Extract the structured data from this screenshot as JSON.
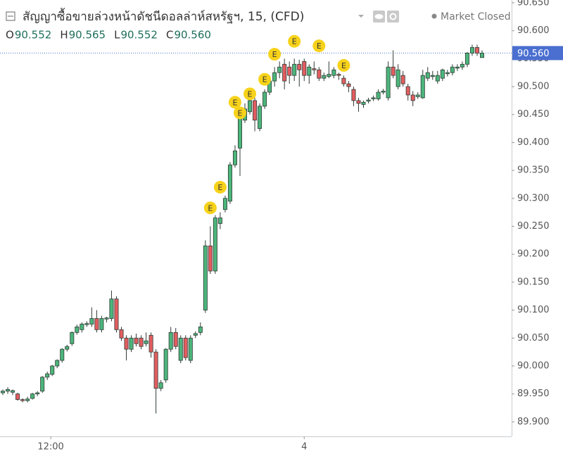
{
  "chart_data": {
    "type": "candlestick",
    "title": "สัญญาซื้อขายล่วงหน้าดัชนีดอลล่าห์สหรัฐฯ, 15, (CFD)",
    "status": "Market Closed",
    "legend_ohlc": [
      {
        "label": "O",
        "value": "90.552"
      },
      {
        "label": "H",
        "value": "90.565"
      },
      {
        "label": "L",
        "value": "90.552"
      },
      {
        "label": "C",
        "value": "90.560"
      }
    ],
    "up_color": "#4cb57b",
    "down_color": "#e35d60",
    "ylim": [
      89.874,
      90.655
    ],
    "yticks": [
      {
        "value": 90.65,
        "label": "90.650"
      },
      {
        "value": 90.6,
        "label": "90.600"
      },
      {
        "value": 90.55,
        "label": "90.550"
      },
      {
        "value": 90.5,
        "label": "90.500"
      },
      {
        "value": 90.45,
        "label": "90.450"
      },
      {
        "value": 90.4,
        "label": "90.400"
      },
      {
        "value": 90.35,
        "label": "90.350"
      },
      {
        "value": 90.3,
        "label": "90.300"
      },
      {
        "value": 90.25,
        "label": "90.250"
      },
      {
        "value": 90.2,
        "label": "90.200"
      },
      {
        "value": 90.15,
        "label": "90.150"
      },
      {
        "value": 90.1,
        "label": "90.100"
      },
      {
        "value": 90.05,
        "label": "90.050"
      },
      {
        "value": 90,
        "label": "90.000"
      },
      {
        "value": 89.95,
        "label": "89.950"
      },
      {
        "value": 89.9,
        "label": "89.900"
      }
    ],
    "xticks": [
      {
        "value": 9.7,
        "label": "12:00"
      },
      {
        "value": 61,
        "label": "4"
      }
    ],
    "last_price": {
      "value": 90.56,
      "label": "90.560",
      "color": "#4a6fd0"
    },
    "events": [
      {
        "index": 42,
        "value": 90.283,
        "label": "E"
      },
      {
        "index": 44,
        "value": 90.32,
        "label": "E"
      },
      {
        "index": 47,
        "value": 90.472,
        "label": "E"
      },
      {
        "index": 48,
        "value": 90.453,
        "label": "E"
      },
      {
        "index": 50,
        "value": 90.487,
        "label": "E"
      },
      {
        "index": 53,
        "value": 90.513,
        "label": "E"
      },
      {
        "index": 55,
        "value": 90.558,
        "label": "E"
      },
      {
        "index": 59,
        "value": 90.581,
        "label": "E"
      },
      {
        "index": 64,
        "value": 90.573,
        "label": "E"
      },
      {
        "index": 69,
        "value": 90.538,
        "label": "E"
      }
    ],
    "open": [
      89.952,
      89.955,
      89.953,
      89.95,
      89.94,
      89.938,
      89.942,
      89.95,
      89.955,
      89.98,
      89.985,
      90.0,
      90.01,
      90.03,
      90.04,
      90.06,
      90.065,
      90.074,
      90.075,
      90.085,
      90.065,
      90.084,
      90.085,
      90.12,
      90.065,
      90.05,
      90.03,
      90.05,
      90.05,
      90.04,
      90.055,
      90.025,
      89.96,
      89.975,
      90.03,
      90.06,
      90.01,
      90.05,
      90.01,
      90.055,
      90.06,
      90.1,
      90.215,
      90.17,
      90.255,
      90.28,
      90.295,
      90.36,
      90.39,
      90.44,
      90.455,
      90.475,
      90.425,
      90.465,
      90.49,
      90.51,
      90.525,
      90.54,
      90.535,
      90.52,
      90.54,
      90.545,
      90.52,
      90.532,
      90.53,
      90.515,
      90.518,
      90.52,
      90.522,
      90.515,
      90.505,
      90.495,
      90.475,
      90.468,
      90.474,
      90.478,
      90.478,
      90.49,
      90.48,
      90.535,
      90.5,
      90.52,
      90.5,
      90.485,
      90.482,
      90.48,
      90.515,
      90.518,
      90.51,
      90.515,
      90.523,
      90.525,
      90.533,
      90.535,
      90.54,
      90.56,
      90.57,
      90.552
    ],
    "high": [
      89.958,
      89.962,
      89.958,
      89.952,
      89.942,
      89.945,
      89.952,
      89.955,
      89.982,
      89.99,
      90.002,
      90.012,
      90.032,
      90.038,
      90.062,
      90.074,
      90.078,
      90.08,
      90.105,
      90.1,
      90.09,
      90.088,
      90.135,
      90.125,
      90.07,
      90.055,
      90.055,
      90.058,
      90.055,
      90.06,
      90.06,
      90.03,
      89.975,
      90.032,
      90.07,
      90.068,
      90.055,
      90.055,
      90.055,
      90.062,
      90.078,
      90.225,
      90.25,
      90.27,
      90.275,
      90.305,
      90.365,
      90.395,
      90.455,
      90.47,
      90.485,
      90.48,
      90.47,
      90.495,
      90.52,
      90.535,
      90.545,
      90.55,
      90.545,
      90.55,
      90.548,
      90.55,
      90.54,
      90.545,
      90.535,
      90.525,
      90.545,
      90.535,
      90.525,
      90.52,
      90.51,
      90.5,
      90.48,
      90.475,
      90.48,
      90.484,
      90.495,
      90.496,
      90.545,
      90.565,
      90.54,
      90.528,
      90.505,
      90.492,
      90.49,
      90.53,
      90.535,
      90.528,
      90.528,
      90.532,
      90.53,
      90.54,
      90.54,
      90.545,
      90.562,
      90.575,
      90.575,
      90.565
    ],
    "low": [
      89.948,
      89.95,
      89.948,
      89.938,
      89.935,
      89.935,
      89.94,
      89.946,
      89.952,
      89.975,
      89.982,
      89.996,
      90.006,
      90.026,
      90.036,
      90.056,
      90.06,
      90.07,
      90.07,
      90.06,
      90.06,
      90.078,
      90.08,
      90.06,
      90.045,
      90.01,
      90.025,
      90.035,
      90.03,
      90.035,
      90.015,
      89.915,
      89.955,
      89.97,
      90.025,
      90.03,
      90.005,
      90.01,
      90.005,
      90.05,
      90.055,
      90.095,
      90.165,
      90.165,
      90.245,
      90.275,
      90.29,
      90.355,
      90.34,
      90.435,
      90.45,
      90.42,
      90.42,
      90.46,
      90.485,
      90.5,
      90.515,
      90.495,
      90.505,
      90.51,
      90.5,
      90.51,
      90.505,
      90.522,
      90.51,
      90.51,
      90.515,
      90.515,
      90.512,
      90.5,
      90.49,
      90.465,
      90.455,
      90.462,
      90.47,
      90.474,
      90.475,
      90.486,
      90.475,
      90.515,
      90.495,
      90.5,
      90.475,
      90.465,
      90.478,
      90.478,
      90.51,
      90.512,
      90.505,
      90.51,
      90.518,
      90.52,
      90.528,
      90.53,
      90.535,
      90.555,
      90.555,
      90.552
    ],
    "close": [
      89.955,
      89.958,
      89.956,
      89.94,
      89.938,
      89.941,
      89.95,
      89.952,
      89.98,
      89.986,
      90.0,
      90.01,
      90.03,
      90.035,
      90.06,
      90.07,
      90.075,
      90.076,
      90.085,
      90.065,
      90.085,
      90.086,
      90.12,
      90.065,
      90.05,
      90.03,
      90.05,
      90.04,
      90.035,
      90.045,
      90.025,
      89.96,
      89.97,
      90.03,
      90.06,
      90.035,
      90.05,
      90.015,
      90.05,
      90.058,
      90.07,
      90.215,
      90.17,
      90.265,
      90.265,
      90.3,
      90.36,
      90.385,
      90.45,
      90.46,
      90.475,
      90.44,
      90.465,
      90.49,
      90.51,
      90.525,
      90.535,
      90.51,
      90.52,
      90.54,
      90.53,
      90.52,
      90.535,
      90.53,
      90.515,
      90.52,
      90.522,
      90.53,
      90.52,
      90.505,
      90.5,
      90.475,
      90.47,
      90.472,
      90.476,
      90.48,
      90.49,
      90.492,
      90.535,
      90.52,
      90.53,
      90.505,
      90.485,
      90.475,
      90.485,
      90.52,
      90.525,
      90.52,
      90.52,
      90.53,
      90.525,
      90.535,
      90.535,
      90.54,
      90.56,
      90.57,
      90.56,
      90.56
    ]
  }
}
